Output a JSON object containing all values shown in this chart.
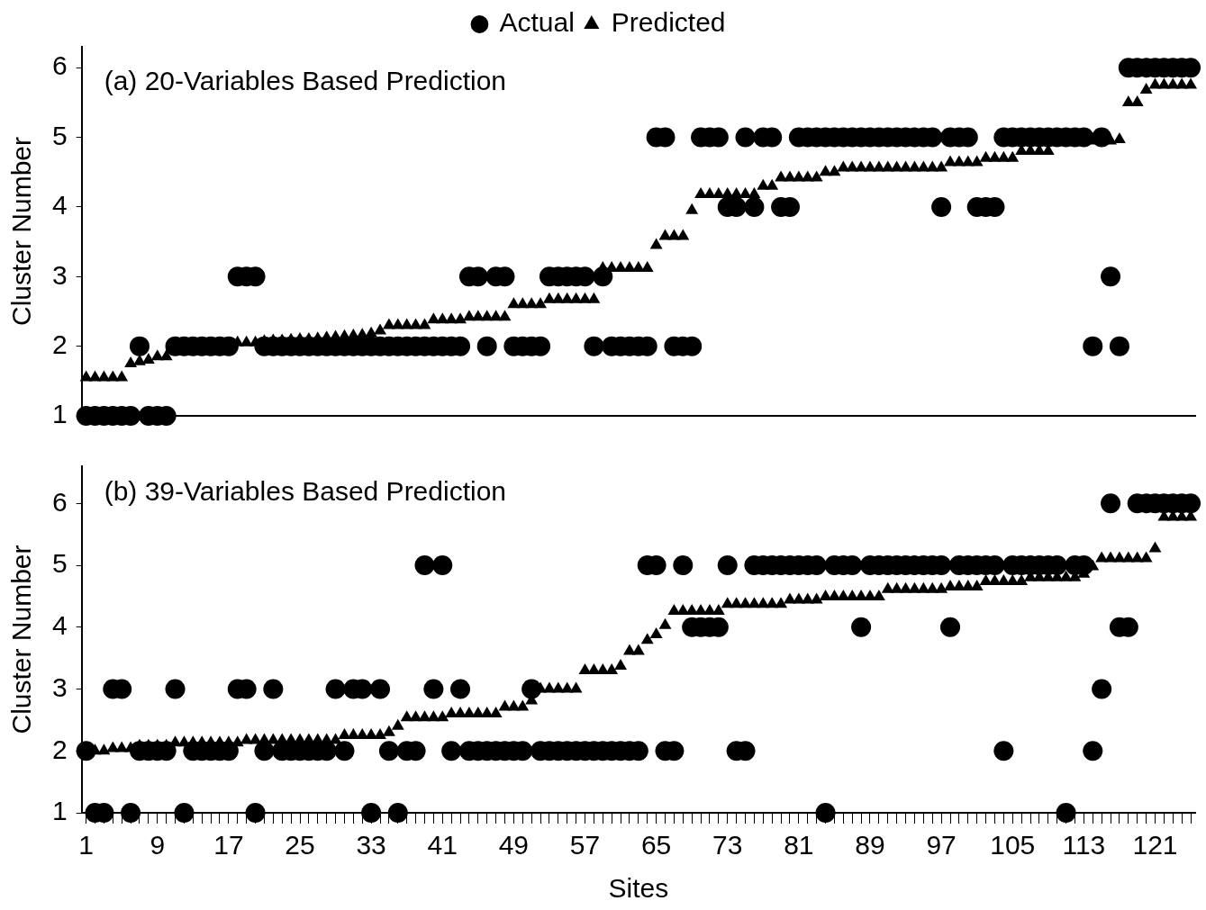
{
  "chart_data": [
    {
      "type": "scatter",
      "title": "(a) 20-Variables Based Prediction",
      "ylabel": "Cluster Number",
      "legend": "top",
      "tick_labels": "y",
      "grid": false,
      "categories": [
        "1",
        null,
        null,
        null,
        null,
        null,
        null,
        null,
        "9",
        null,
        null,
        null,
        null,
        null,
        null,
        null,
        "17",
        null,
        null,
        null,
        null,
        null,
        null,
        null,
        "25",
        null,
        null,
        null,
        null,
        null,
        null,
        null,
        "33",
        null,
        null,
        null,
        null,
        null,
        null,
        null,
        "41",
        null,
        null,
        null,
        null,
        null,
        null,
        null,
        "49",
        null,
        null,
        null,
        null,
        null,
        null,
        null,
        "57",
        null,
        null,
        null,
        null,
        null,
        null,
        null,
        "65",
        null,
        null,
        null,
        null,
        null,
        null,
        null,
        "73",
        null,
        null,
        null,
        null,
        null,
        null,
        null,
        "81",
        null,
        null,
        null,
        null,
        null,
        null,
        null,
        "89",
        null,
        null,
        null,
        null,
        null,
        null,
        null,
        "97",
        null,
        null,
        null,
        null,
        null,
        null,
        null,
        "105",
        null,
        null,
        null,
        null,
        null,
        null,
        null,
        "113",
        null,
        null,
        null,
        null,
        null,
        null,
        null,
        "121",
        null,
        null,
        null,
        null
      ],
      "ylim": [
        1,
        6.3
      ],
      "yticks": [
        1,
        2,
        3,
        4,
        5,
        6
      ],
      "series": [
        {
          "name": "Actual",
          "color": "#000000",
          "marker": "circle",
          "values": [
            1,
            1,
            1,
            1,
            1,
            1,
            2,
            1,
            1,
            1,
            2,
            2,
            2,
            2,
            2,
            2,
            2,
            3,
            3,
            3,
            2,
            2,
            2,
            2,
            2,
            2,
            2,
            2,
            2,
            2,
            2,
            2,
            2,
            2,
            2,
            2,
            2,
            2,
            2,
            2,
            2,
            2,
            2,
            3,
            3,
            2,
            3,
            3,
            2,
            2,
            2,
            2,
            3,
            3,
            3,
            3,
            3,
            2,
            3,
            2,
            2,
            2,
            2,
            2,
            5,
            5,
            2,
            2,
            2,
            5,
            5,
            5,
            4,
            4,
            5,
            4,
            5,
            5,
            4,
            4,
            5,
            5,
            5,
            5,
            5,
            5,
            5,
            5,
            5,
            5,
            5,
            5,
            5,
            5,
            5,
            5,
            4,
            5,
            5,
            5,
            4,
            4,
            4,
            5,
            5,
            5,
            5,
            5,
            5,
            5,
            5,
            5,
            5,
            2,
            5,
            3,
            2,
            6,
            6,
            6,
            6,
            6,
            6,
            6,
            6
          ]
        },
        {
          "name": "Predicted",
          "color": "#000000",
          "marker": "triangle",
          "values": [
            1.55,
            1.55,
            1.55,
            1.55,
            1.55,
            1.75,
            1.78,
            1.8,
            1.85,
            1.85,
            null,
            null,
            null,
            null,
            null,
            null,
            null,
            2.05,
            2.05,
            2.05,
            2.07,
            2.08,
            2.08,
            2.09,
            2.1,
            2.1,
            2.11,
            2.12,
            2.13,
            2.14,
            2.15,
            2.16,
            2.18,
            2.22,
            2.3,
            2.3,
            2.3,
            2.3,
            2.3,
            2.38,
            2.38,
            2.38,
            2.38,
            2.42,
            2.42,
            2.42,
            2.42,
            2.42,
            2.6,
            2.6,
            2.6,
            2.6,
            2.67,
            2.67,
            2.67,
            2.67,
            2.67,
            2.67,
            3.12,
            3.12,
            3.12,
            3.12,
            3.12,
            3.12,
            3.45,
            3.58,
            3.58,
            3.58,
            3.95,
            4.18,
            4.18,
            4.18,
            4.18,
            4.18,
            4.18,
            4.18,
            4.3,
            4.3,
            4.42,
            4.42,
            4.42,
            4.42,
            4.42,
            4.5,
            4.5,
            4.56,
            4.56,
            4.56,
            4.56,
            4.56,
            4.56,
            4.56,
            4.56,
            4.56,
            4.56,
            4.56,
            4.56,
            4.64,
            4.64,
            4.64,
            4.64,
            4.7,
            4.7,
            4.7,
            4.7,
            4.8,
            4.8,
            4.8,
            4.8,
            null,
            null,
            null,
            null,
            4.95,
            null,
            4.95,
            4.97,
            5.5,
            5.5,
            5.68,
            5.75,
            5.75,
            5.75,
            5.75,
            5.75
          ]
        }
      ]
    },
    {
      "type": "scatter",
      "title": "(b) 39-Variables Based Prediction",
      "xlabel": "Sites",
      "ylabel": "Cluster Number",
      "grid": false,
      "categories": [
        "1",
        null,
        null,
        null,
        null,
        null,
        null,
        null,
        "9",
        null,
        null,
        null,
        null,
        null,
        null,
        null,
        "17",
        null,
        null,
        null,
        null,
        null,
        null,
        null,
        "25",
        null,
        null,
        null,
        null,
        null,
        null,
        null,
        "33",
        null,
        null,
        null,
        null,
        null,
        null,
        null,
        "41",
        null,
        null,
        null,
        null,
        null,
        null,
        null,
        "49",
        null,
        null,
        null,
        null,
        null,
        null,
        null,
        "57",
        null,
        null,
        null,
        null,
        null,
        null,
        null,
        "65",
        null,
        null,
        null,
        null,
        null,
        null,
        null,
        "73",
        null,
        null,
        null,
        null,
        null,
        null,
        null,
        "81",
        null,
        null,
        null,
        null,
        null,
        null,
        null,
        "89",
        null,
        null,
        null,
        null,
        null,
        null,
        null,
        "97",
        null,
        null,
        null,
        null,
        null,
        null,
        null,
        "105",
        null,
        null,
        null,
        null,
        null,
        null,
        null,
        "113",
        null,
        null,
        null,
        null,
        null,
        null,
        null,
        "121",
        null,
        null,
        null,
        null
      ],
      "ylim": [
        1,
        6.6
      ],
      "yticks": [
        1,
        2,
        3,
        4,
        5,
        6
      ],
      "series": [
        {
          "color": "#000000",
          "marker": "circle",
          "values": [
            2,
            1,
            1,
            3,
            3,
            1,
            2,
            2,
            2,
            2,
            3,
            1,
            2,
            2,
            2,
            2,
            2,
            3,
            3,
            1,
            2,
            3,
            2,
            2,
            2,
            2,
            2,
            2,
            3,
            2,
            3,
            3,
            1,
            3,
            2,
            1,
            2,
            2,
            5,
            3,
            5,
            2,
            3,
            2,
            2,
            2,
            2,
            2,
            2,
            2,
            3,
            2,
            2,
            2,
            2,
            2,
            2,
            2,
            2,
            2,
            2,
            2,
            2,
            5,
            5,
            2,
            2,
            5,
            4,
            4,
            4,
            4,
            5,
            2,
            2,
            5,
            5,
            5,
            5,
            5,
            5,
            5,
            5,
            1,
            5,
            5,
            5,
            4,
            5,
            5,
            5,
            5,
            5,
            5,
            5,
            5,
            5,
            4,
            5,
            5,
            5,
            5,
            5,
            2,
            5,
            5,
            5,
            5,
            5,
            5,
            1,
            5,
            5,
            2,
            3,
            6,
            4,
            4,
            6,
            6,
            6,
            6,
            6,
            6,
            6
          ]
        },
        {
          "color": "#000000",
          "marker": "triangle",
          "values": [
            null,
            2.0,
            2.0,
            2.04,
            2.04,
            2.04,
            2.08,
            2.08,
            2.08,
            2.08,
            2.13,
            2.13,
            2.13,
            2.13,
            2.13,
            2.13,
            2.13,
            2.13,
            2.17,
            2.17,
            2.17,
            2.17,
            2.17,
            2.17,
            2.17,
            2.17,
            2.17,
            2.17,
            2.17,
            2.25,
            2.25,
            2.25,
            2.25,
            2.25,
            2.3,
            2.4,
            2.54,
            2.54,
            2.54,
            2.54,
            2.54,
            2.6,
            2.6,
            2.6,
            2.6,
            2.6,
            2.6,
            2.71,
            2.71,
            2.71,
            2.81,
            3.0,
            3.0,
            3.0,
            3.0,
            3.0,
            3.3,
            3.3,
            3.3,
            3.3,
            3.37,
            3.61,
            3.61,
            3.79,
            3.88,
            4.03,
            4.26,
            4.26,
            4.26,
            4.26,
            4.26,
            4.26,
            4.37,
            4.37,
            4.37,
            4.37,
            4.37,
            4.37,
            4.37,
            4.44,
            4.44,
            4.44,
            4.44,
            4.49,
            4.49,
            4.49,
            4.49,
            4.49,
            4.49,
            4.49,
            4.61,
            4.61,
            4.61,
            4.61,
            4.61,
            4.61,
            4.61,
            4.65,
            4.65,
            4.65,
            4.65,
            4.74,
            4.74,
            4.74,
            4.74,
            4.74,
            4.8,
            4.8,
            4.8,
            4.8,
            4.8,
            4.8,
            4.86,
            4.98,
            5.11,
            5.11,
            5.11,
            5.11,
            5.11,
            5.11,
            5.27,
            5.78,
            5.78,
            5.78,
            5.78
          ]
        }
      ]
    }
  ]
}
